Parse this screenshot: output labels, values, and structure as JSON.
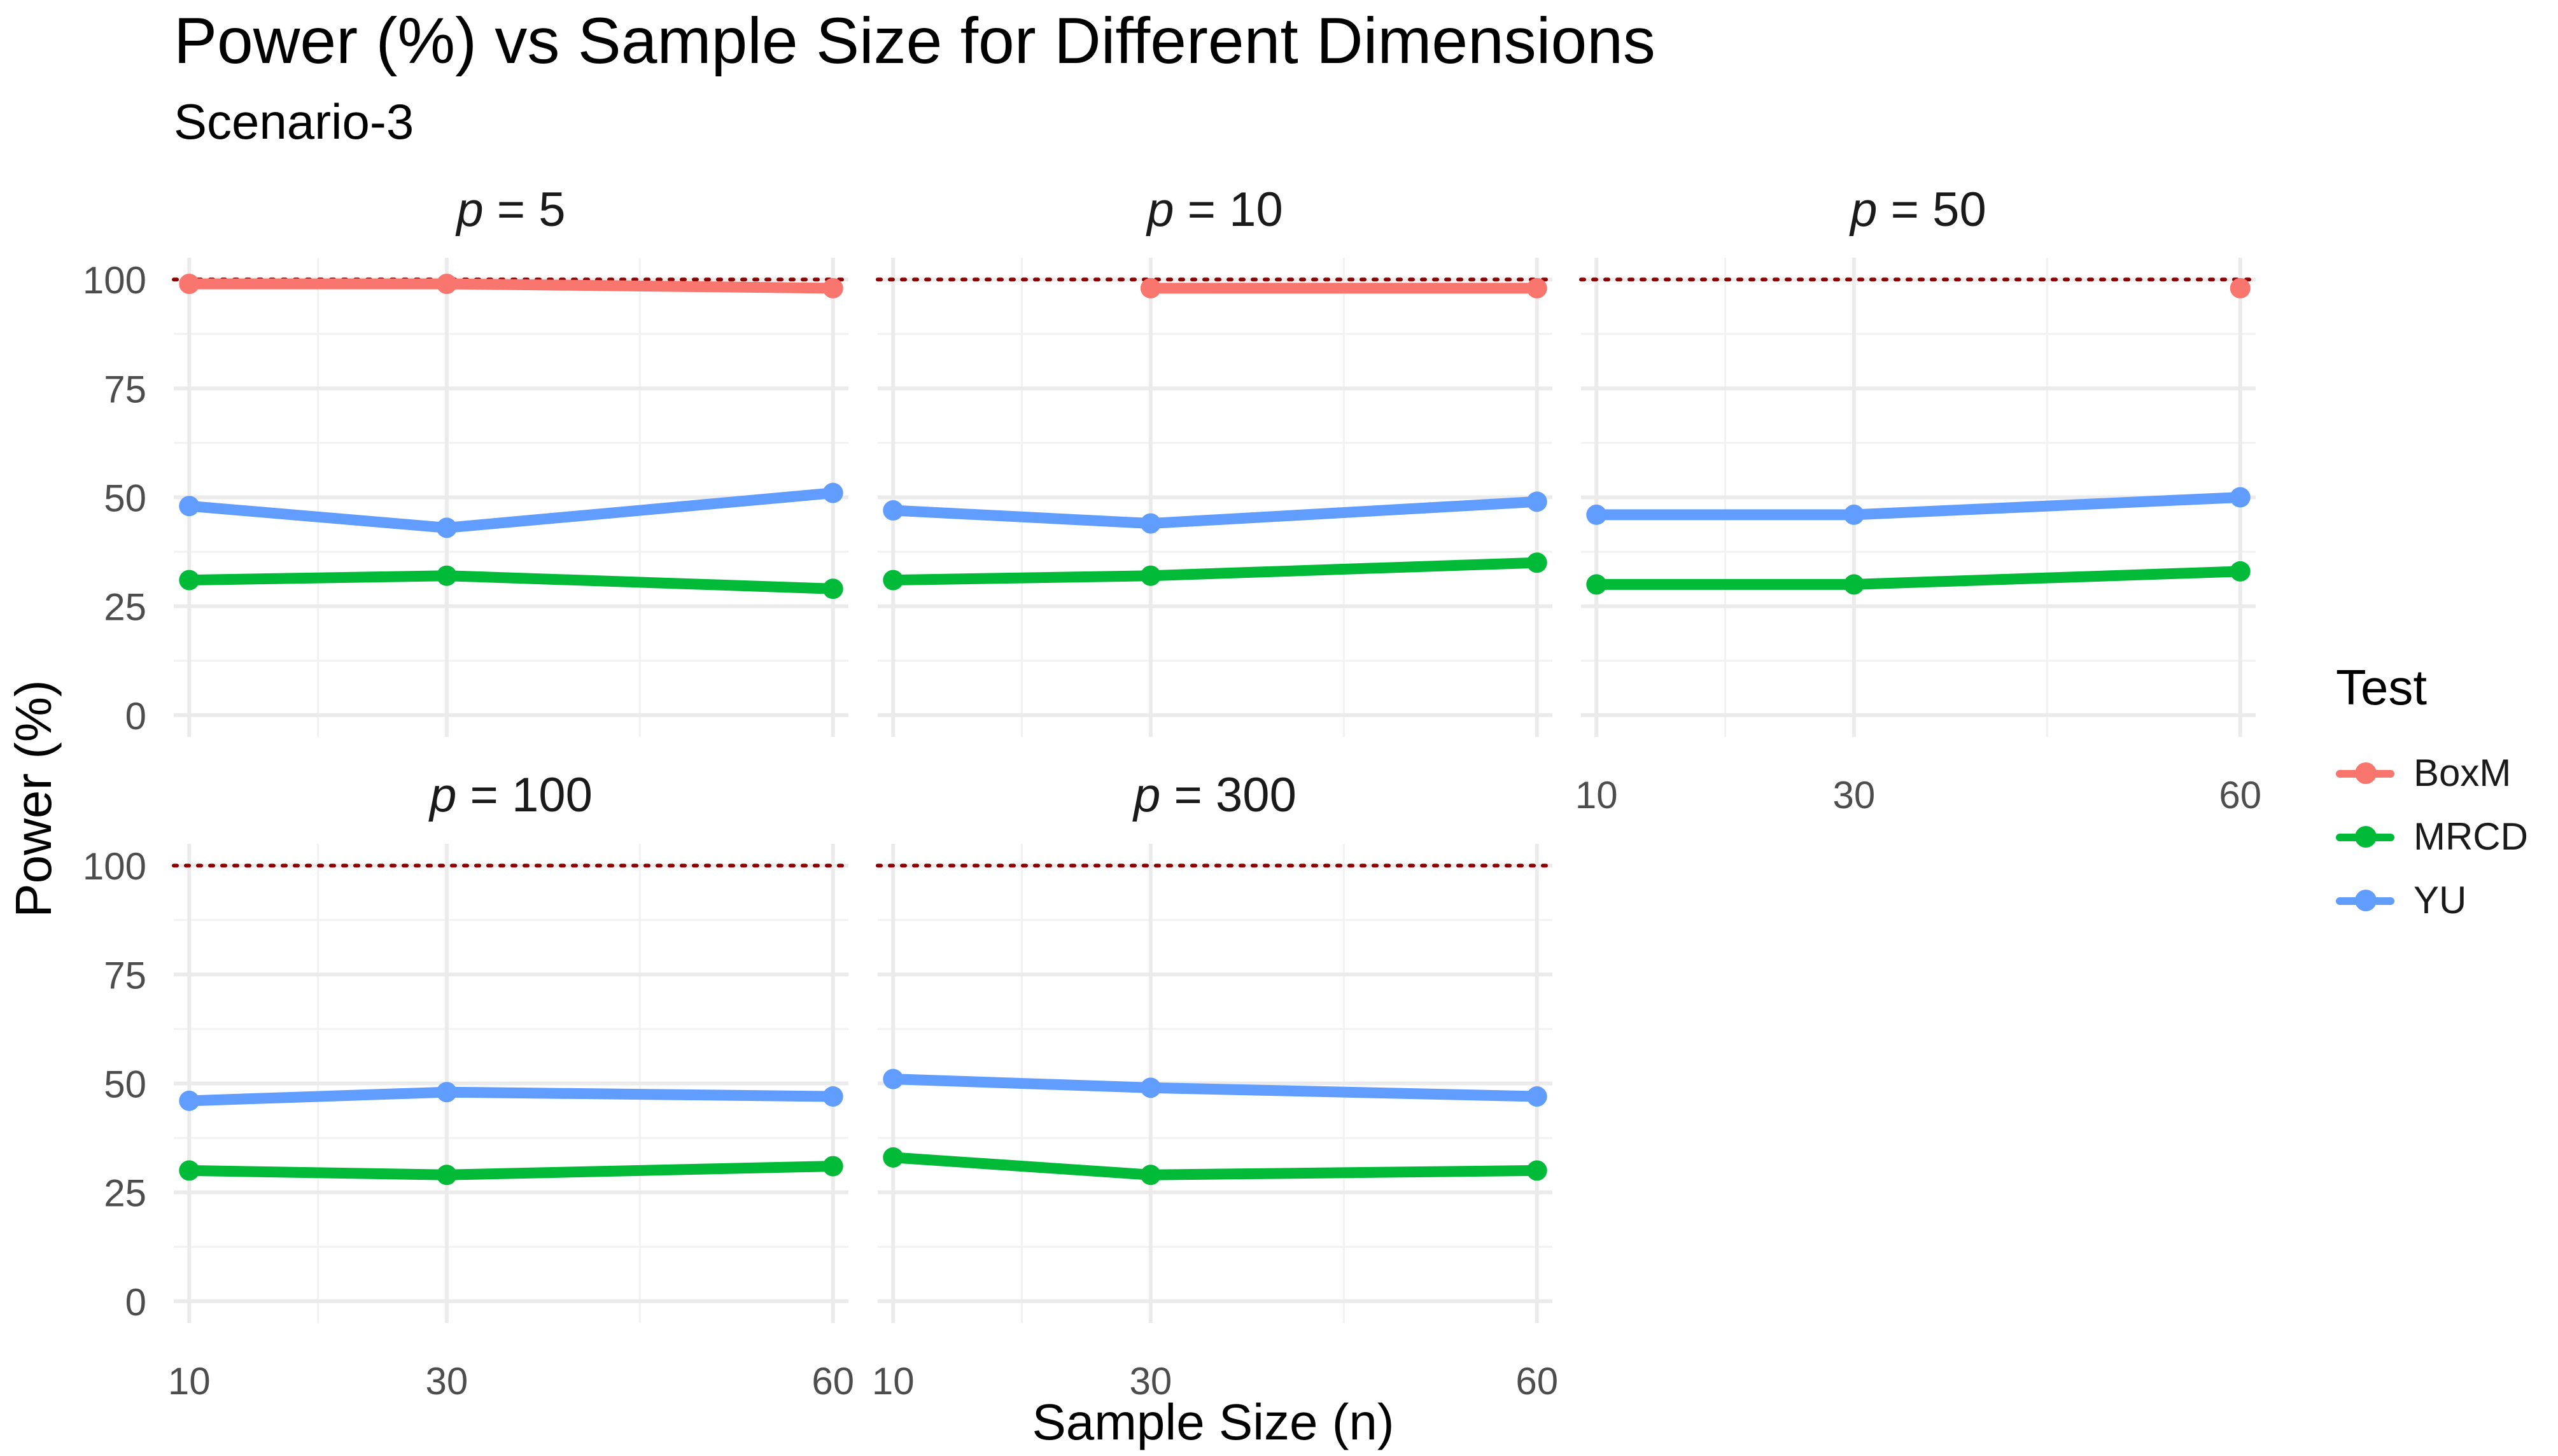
{
  "title": "Power (%) vs Sample Size for Different Dimensions",
  "subtitle": "Scenario-3",
  "colors": {
    "BoxM": "#F8766D",
    "MRCD": "#00BA38",
    "YU": "#619CFF",
    "reference": "#8B0000"
  },
  "chart_data": {
    "type": "line",
    "title": "Power (%) vs Sample Size for Different Dimensions",
    "subtitle": "Scenario-3",
    "xlabel": "Sample Size (n)",
    "ylabel": "Power (%)",
    "x": [
      10,
      30,
      60
    ],
    "x_ticks": [
      "10",
      "30",
      "60"
    ],
    "y_ticks": [
      "0",
      "25",
      "50",
      "75",
      "100"
    ],
    "ylim": [
      -5,
      105
    ],
    "reference_line": {
      "y": 100,
      "style": "dotted",
      "color": "#8B0000"
    },
    "legend": {
      "title": "Test",
      "position": "right",
      "entries": [
        "BoxM",
        "MRCD",
        "YU"
      ]
    },
    "facet_var": "p",
    "panels": [
      {
        "p": 5,
        "label": "= 5",
        "series": [
          {
            "name": "BoxM",
            "values": [
              99,
              99,
              98
            ]
          },
          {
            "name": "MRCD",
            "values": [
              31,
              32,
              29
            ]
          },
          {
            "name": "YU",
            "values": [
              48,
              43,
              51
            ]
          }
        ]
      },
      {
        "p": 10,
        "label": "= 10",
        "series": [
          {
            "name": "BoxM",
            "values": [
              null,
              98,
              98
            ]
          },
          {
            "name": "MRCD",
            "values": [
              31,
              32,
              35
            ]
          },
          {
            "name": "YU",
            "values": [
              47,
              44,
              49
            ]
          }
        ]
      },
      {
        "p": 50,
        "label": "= 50",
        "series": [
          {
            "name": "BoxM",
            "values": [
              null,
              null,
              98
            ]
          },
          {
            "name": "MRCD",
            "values": [
              30,
              30,
              33
            ]
          },
          {
            "name": "YU",
            "values": [
              46,
              46,
              50
            ]
          }
        ]
      },
      {
        "p": 100,
        "label": "= 100",
        "series": [
          {
            "name": "MRCD",
            "values": [
              30,
              29,
              31
            ]
          },
          {
            "name": "YU",
            "values": [
              46,
              48,
              47
            ]
          }
        ]
      },
      {
        "p": 300,
        "label": "= 300",
        "series": [
          {
            "name": "MRCD",
            "values": [
              33,
              29,
              30
            ]
          },
          {
            "name": "YU",
            "values": [
              51,
              49,
              47
            ]
          }
        ]
      }
    ]
  }
}
